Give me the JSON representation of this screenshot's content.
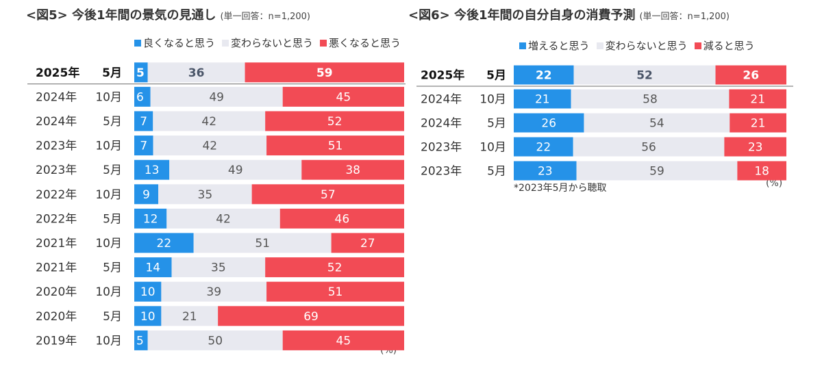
{
  "colors": {
    "up": "#2592e8",
    "same": "#e8e9f0",
    "down": "#f24b55"
  },
  "chart_data": [
    {
      "type": "bar",
      "title": "<図5> 今後1年間の景気の見通し",
      "subtitle": "(単一回答：n=1,200)",
      "unit": "(%)",
      "series": [
        {
          "name": "良くなると思う",
          "values": [
            5,
            6,
            7,
            7,
            13,
            9,
            12,
            22,
            14,
            10,
            10,
            5
          ]
        },
        {
          "name": "変わらないと思う",
          "values": [
            36,
            49,
            42,
            42,
            49,
            35,
            42,
            51,
            35,
            39,
            21,
            50
          ]
        },
        {
          "name": "悪くなると思う",
          "values": [
            59,
            45,
            52,
            51,
            38,
            57,
            46,
            27,
            52,
            51,
            69,
            45
          ]
        }
      ],
      "categories": [
        {
          "year": "2025年",
          "month": "5月"
        },
        {
          "year": "2024年",
          "month": "10月"
        },
        {
          "year": "2024年",
          "month": "5月"
        },
        {
          "year": "2023年",
          "month": "10月"
        },
        {
          "year": "2023年",
          "month": "5月"
        },
        {
          "year": "2022年",
          "month": "10月"
        },
        {
          "year": "2022年",
          "month": "5月"
        },
        {
          "year": "2021年",
          "month": "10月"
        },
        {
          "year": "2021年",
          "month": "5月"
        },
        {
          "year": "2020年",
          "month": "10月"
        },
        {
          "year": "2020年",
          "month": "5月"
        },
        {
          "year": "2019年",
          "month": "10月"
        }
      ],
      "highlight_first_row": true
    },
    {
      "type": "bar",
      "title": "<図6> 今後1年間の自分自身の消費予測",
      "subtitle": "(単一回答：n=1,200)",
      "unit": "(%)",
      "note": "*2023年5月から聴取",
      "series": [
        {
          "name": "増えると思う",
          "values": [
            22,
            21,
            26,
            22,
            23
          ]
        },
        {
          "name": "変わらないと思う",
          "values": [
            52,
            58,
            54,
            56,
            59
          ]
        },
        {
          "name": "減ると思う",
          "values": [
            26,
            21,
            21,
            23,
            18
          ]
        }
      ],
      "categories": [
        {
          "year": "2025年",
          "month": "5月"
        },
        {
          "year": "2024年",
          "month": "10月"
        },
        {
          "year": "2024年",
          "month": "5月"
        },
        {
          "year": "2023年",
          "month": "10月"
        },
        {
          "year": "2023年",
          "month": "5月"
        }
      ],
      "highlight_first_row": true
    }
  ]
}
